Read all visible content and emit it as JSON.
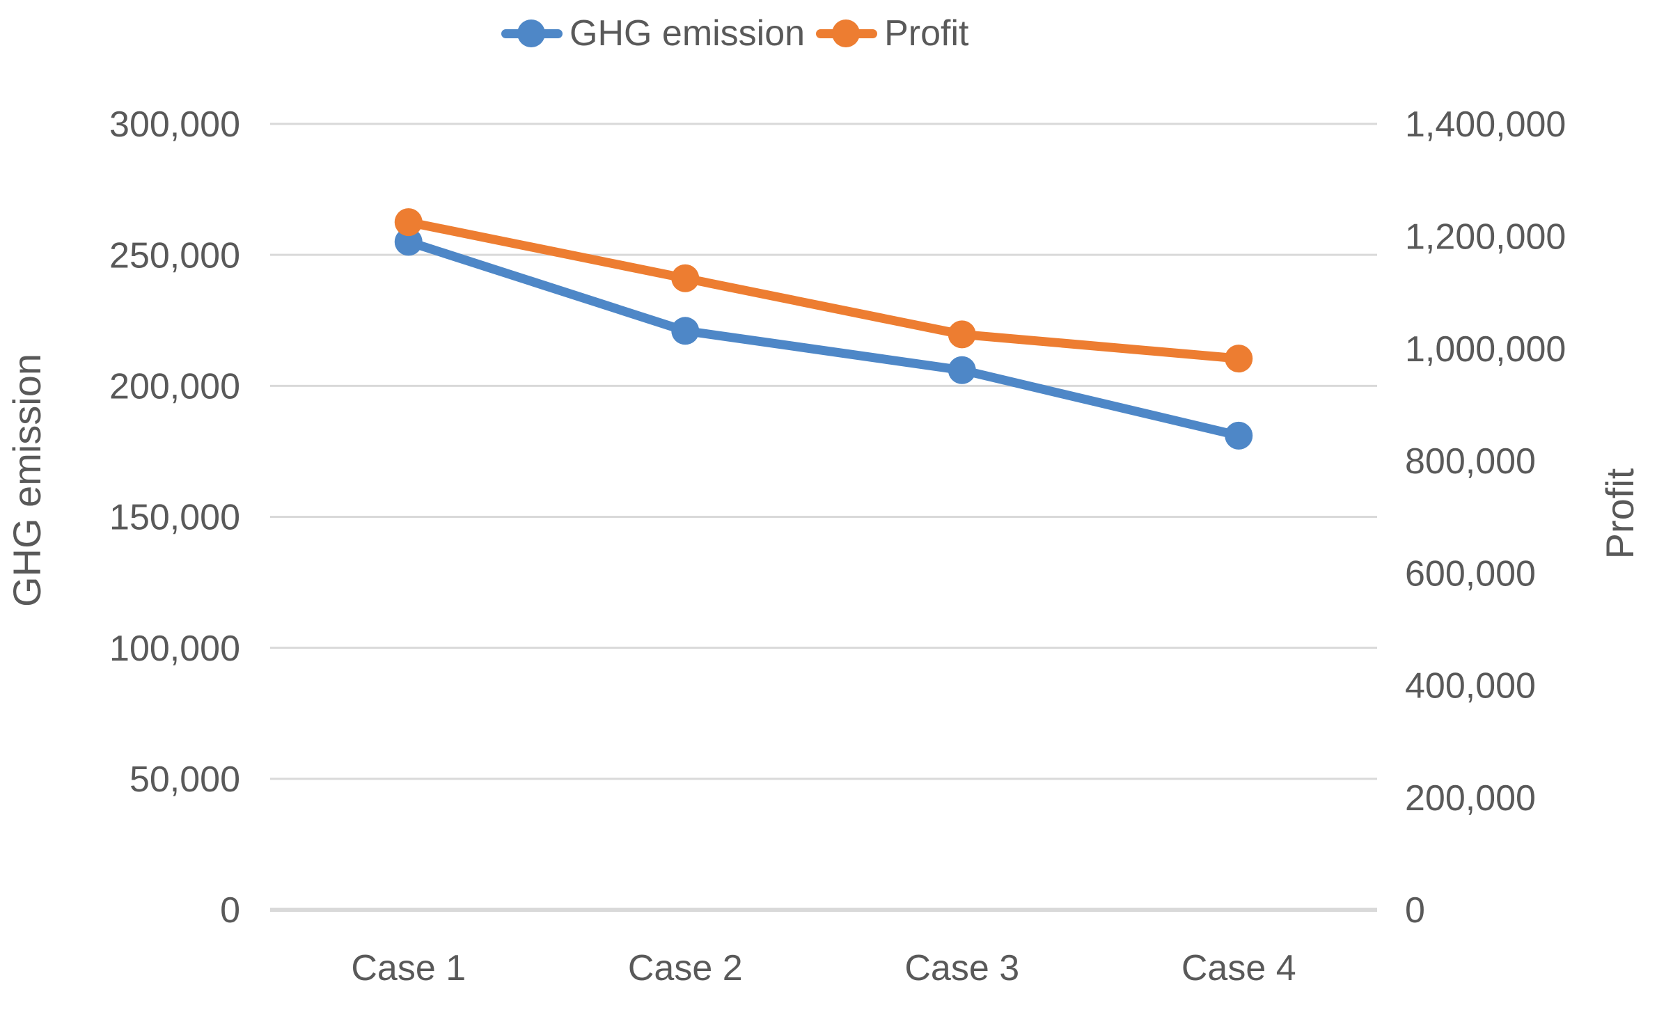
{
  "chart_data": {
    "type": "line",
    "title": "",
    "categories": [
      "Case 1",
      "Case 2",
      "Case 3",
      "Case 4"
    ],
    "series": [
      {
        "name": "GHG emission",
        "axis": "left",
        "color": "#4E87C7",
        "marker": "circle",
        "values": [
          255000,
          221000,
          206000,
          181000
        ]
      },
      {
        "name": "Profit",
        "axis": "right",
        "color": "#ED7D31",
        "marker": "circle",
        "values": [
          1225000,
          1125000,
          1025000,
          982000
        ]
      }
    ],
    "left_axis": {
      "label": "GHG emission",
      "min": 0,
      "max": 300000,
      "step": 50000,
      "ticks": [
        "300,000",
        "250,000",
        "200,000",
        "150,000",
        "100,000",
        "50,000",
        "0"
      ]
    },
    "right_axis": {
      "label": "Profit",
      "min": 0,
      "max": 1400000,
      "step": 200000,
      "ticks": [
        "1,400,000",
        "1,200,000",
        "1,000,000",
        "800,000",
        "600,000",
        "400,000",
        "200,000",
        "0"
      ]
    },
    "legend_position": "top",
    "grid": true,
    "gridline_color": "#D9D9D9",
    "axis_line_color": "#D9D9D9",
    "text_color": "#595959",
    "background_color": "#FFFFFF"
  }
}
